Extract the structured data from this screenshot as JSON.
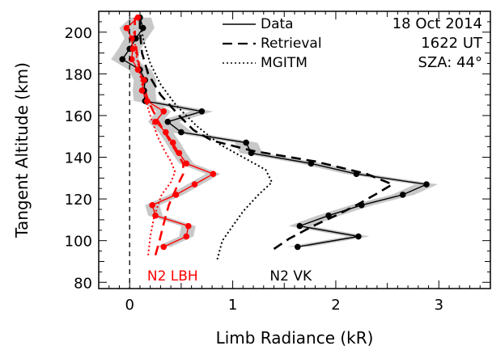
{
  "chart_data": {
    "type": "line",
    "title": "",
    "xlabel": "Limb Radiance (kR)",
    "ylabel": "Tangent Altitude (km)",
    "xlim": [
      -0.3,
      3.5
    ],
    "ylim": [
      77,
      210
    ],
    "x_ticks": [
      0,
      1,
      2,
      3
    ],
    "y_ticks": [
      80,
      100,
      120,
      140,
      160,
      180,
      200
    ],
    "grid": false,
    "legend_position": "top-center",
    "legend": [
      {
        "label": "Data",
        "style": "solid"
      },
      {
        "label": "Retrieval",
        "style": "dashed"
      },
      {
        "label": "MGITM",
        "style": "dotted"
      }
    ],
    "info_lines": [
      "18 Oct 2014",
      "1622 UT",
      "SZA: 44°"
    ],
    "zero_line_x": 0,
    "annotations": [
      {
        "text": "N2 LBH",
        "x": 0.17,
        "y": 84,
        "color": "#ff0000"
      },
      {
        "text": "N2 VK",
        "x": 1.36,
        "y": 84,
        "color": "#000000"
      }
    ],
    "series": [
      {
        "name": "N2 VK",
        "kind": "data",
        "color": "#000000",
        "points": [
          {
            "x": 1.63,
            "y": 97
          },
          {
            "x": 2.22,
            "y": 102
          },
          {
            "x": 1.65,
            "y": 107
          },
          {
            "x": 1.93,
            "y": 112
          },
          {
            "x": 2.25,
            "y": 117
          },
          {
            "x": 2.65,
            "y": 122
          },
          {
            "x": 2.88,
            "y": 127
          },
          {
            "x": 2.2,
            "y": 132
          },
          {
            "x": 1.76,
            "y": 137
          },
          {
            "x": 1.18,
            "y": 142
          },
          {
            "x": 1.13,
            "y": 147
          },
          {
            "x": 0.5,
            "y": 152
          },
          {
            "x": 0.37,
            "y": 157
          },
          {
            "x": 0.7,
            "y": 162
          },
          {
            "x": 0.15,
            "y": 167
          },
          {
            "x": 0.14,
            "y": 172
          },
          {
            "x": 0.15,
            "y": 177
          },
          {
            "x": 0.1,
            "y": 182
          },
          {
            "x": -0.07,
            "y": 187
          },
          {
            "x": 0.0,
            "y": 192
          },
          {
            "x": 0.06,
            "y": 197
          },
          {
            "x": 0.13,
            "y": 202
          },
          {
            "x": 0.1,
            "y": 207
          }
        ]
      },
      {
        "name": "N2 VK",
        "kind": "retrieval",
        "color": "#000000",
        "points": [
          {
            "x": 1.4,
            "y": 96
          },
          {
            "x": 1.55,
            "y": 101
          },
          {
            "x": 1.78,
            "y": 107
          },
          {
            "x": 2.0,
            "y": 112
          },
          {
            "x": 2.2,
            "y": 117
          },
          {
            "x": 2.38,
            "y": 122
          },
          {
            "x": 2.55,
            "y": 127
          },
          {
            "x": 2.3,
            "y": 132
          },
          {
            "x": 1.8,
            "y": 138
          },
          {
            "x": 1.2,
            "y": 143
          },
          {
            "x": 0.8,
            "y": 148
          },
          {
            "x": 0.62,
            "y": 153
          },
          {
            "x": 0.48,
            "y": 160
          },
          {
            "x": 0.3,
            "y": 170
          },
          {
            "x": 0.18,
            "y": 180
          },
          {
            "x": 0.12,
            "y": 190
          },
          {
            "x": 0.1,
            "y": 200
          },
          {
            "x": 0.1,
            "y": 208
          }
        ]
      },
      {
        "name": "N2 VK",
        "kind": "model",
        "color": "#000000",
        "points": [
          {
            "x": 0.85,
            "y": 91
          },
          {
            "x": 0.9,
            "y": 100
          },
          {
            "x": 1.0,
            "y": 107
          },
          {
            "x": 1.1,
            "y": 114
          },
          {
            "x": 1.25,
            "y": 122
          },
          {
            "x": 1.38,
            "y": 128
          },
          {
            "x": 1.32,
            "y": 134
          },
          {
            "x": 1.1,
            "y": 140
          },
          {
            "x": 0.88,
            "y": 146
          },
          {
            "x": 0.65,
            "y": 155
          },
          {
            "x": 0.45,
            "y": 165
          },
          {
            "x": 0.3,
            "y": 175
          },
          {
            "x": 0.2,
            "y": 185
          },
          {
            "x": 0.14,
            "y": 195
          },
          {
            "x": 0.1,
            "y": 205
          }
        ]
      },
      {
        "name": "N2 LBH",
        "kind": "data",
        "color": "#ff0000",
        "points": [
          {
            "x": 0.33,
            "y": 97
          },
          {
            "x": 0.55,
            "y": 102
          },
          {
            "x": 0.57,
            "y": 107
          },
          {
            "x": 0.25,
            "y": 112
          },
          {
            "x": 0.22,
            "y": 117
          },
          {
            "x": 0.45,
            "y": 122
          },
          {
            "x": 0.63,
            "y": 127
          },
          {
            "x": 0.81,
            "y": 132
          },
          {
            "x": 0.55,
            "y": 137
          },
          {
            "x": 0.48,
            "y": 142
          },
          {
            "x": 0.42,
            "y": 147
          },
          {
            "x": 0.35,
            "y": 152
          },
          {
            "x": 0.25,
            "y": 157
          },
          {
            "x": 0.33,
            "y": 162
          },
          {
            "x": 0.17,
            "y": 167
          },
          {
            "x": 0.12,
            "y": 172
          },
          {
            "x": 0.14,
            "y": 177
          },
          {
            "x": 0.08,
            "y": 182
          },
          {
            "x": 0.02,
            "y": 187
          },
          {
            "x": 0.03,
            "y": 192
          },
          {
            "x": 0.02,
            "y": 197
          },
          {
            "x": -0.03,
            "y": 202
          },
          {
            "x": 0.08,
            "y": 207
          }
        ]
      },
      {
        "name": "N2 LBH",
        "kind": "retrieval",
        "color": "#ff0000",
        "points": [
          {
            "x": 0.25,
            "y": 93
          },
          {
            "x": 0.29,
            "y": 100
          },
          {
            "x": 0.33,
            "y": 108
          },
          {
            "x": 0.38,
            "y": 117
          },
          {
            "x": 0.46,
            "y": 126
          },
          {
            "x": 0.52,
            "y": 132
          },
          {
            "x": 0.52,
            "y": 137
          },
          {
            "x": 0.46,
            "y": 142
          },
          {
            "x": 0.4,
            "y": 147
          },
          {
            "x": 0.34,
            "y": 152
          },
          {
            "x": 0.28,
            "y": 157
          },
          {
            "x": 0.23,
            "y": 162
          },
          {
            "x": 0.18,
            "y": 167
          },
          {
            "x": 0.12,
            "y": 177
          },
          {
            "x": 0.08,
            "y": 187
          },
          {
            "x": 0.05,
            "y": 197
          },
          {
            "x": 0.05,
            "y": 207
          }
        ]
      },
      {
        "name": "N2 LBH",
        "kind": "model",
        "color": "#ff0000",
        "points": [
          {
            "x": 0.18,
            "y": 93
          },
          {
            "x": 0.2,
            "y": 102
          },
          {
            "x": 0.24,
            "y": 112
          },
          {
            "x": 0.31,
            "y": 122
          },
          {
            "x": 0.4,
            "y": 128
          },
          {
            "x": 0.44,
            "y": 133
          },
          {
            "x": 0.4,
            "y": 138
          },
          {
            "x": 0.34,
            "y": 143
          },
          {
            "x": 0.27,
            "y": 150
          },
          {
            "x": 0.2,
            "y": 160
          },
          {
            "x": 0.14,
            "y": 170
          },
          {
            "x": 0.1,
            "y": 180
          },
          {
            "x": 0.06,
            "y": 190
          },
          {
            "x": 0.04,
            "y": 200
          }
        ]
      }
    ],
    "uncertainty_band_color": "#c8c8c8"
  }
}
